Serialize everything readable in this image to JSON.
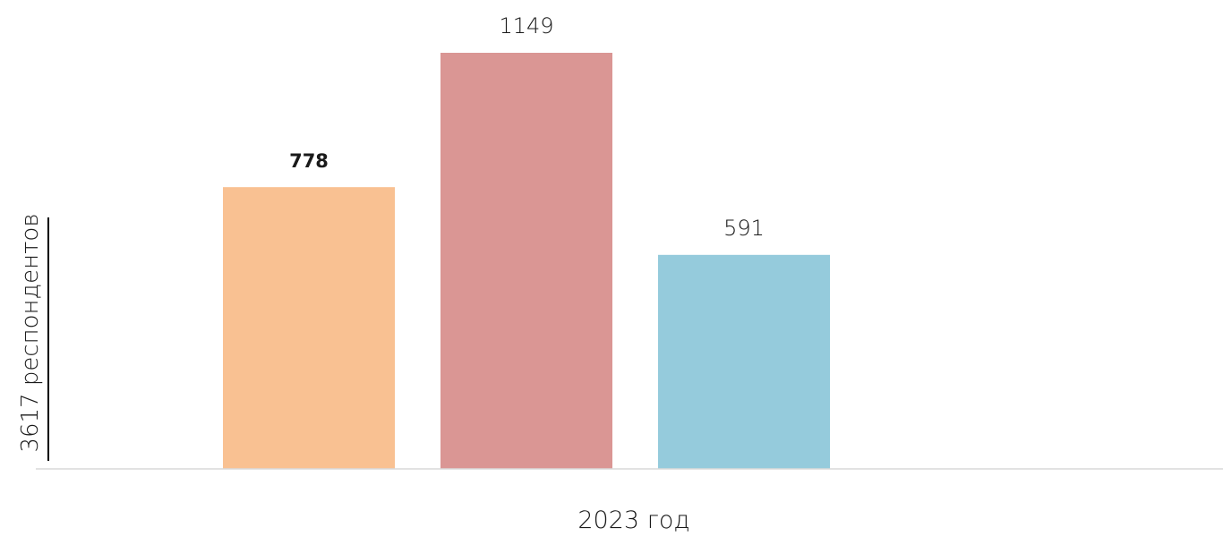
{
  "chart_data": {
    "type": "bar",
    "categories": [
      "2023 год"
    ],
    "series": [
      {
        "values": [
          778
        ],
        "color": "#f9c192"
      },
      {
        "values": [
          1149
        ],
        "color": "#da9694"
      },
      {
        "values": [
          591
        ],
        "color": "#95cbdc"
      }
    ],
    "ylabel": "3617 респондентов",
    "xlabel": "",
    "ylim": [
      0,
      1149
    ],
    "grid": false,
    "legend": "none"
  }
}
